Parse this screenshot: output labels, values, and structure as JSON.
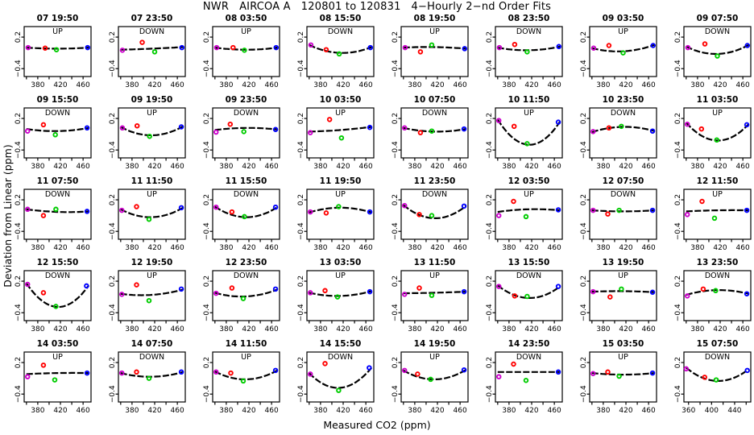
{
  "chart_data": {
    "type": "scatter",
    "title": "NWR   AIRCOA A   120801 to 120831   4−Hourly 2−nd Order Fits",
    "xlabel": "Measured CO2 (ppm)",
    "ylabel": "Deviation from Linear (ppm)",
    "layout": {
      "rows": 5,
      "cols": 8,
      "grid_lines": false,
      "legend": "none"
    },
    "ylim": [
      -0.55,
      0.4
    ],
    "yticks": [
      0.2,
      -0.4
    ],
    "ytick_labels": [
      "0.2",
      "−0.4"
    ],
    "default_xlim": [
      356,
      474
    ],
    "default_xticks": [
      360,
      380,
      400,
      420,
      440,
      460
    ],
    "default_xtick_labels": [
      380,
      420,
      460
    ],
    "series_colors": {
      "magenta": "#cc00cc",
      "red": "#ff0000",
      "green": "#00cc00",
      "blue": "#0000ff"
    },
    "point_series_order": [
      "magenta",
      "red",
      "green",
      "blue"
    ],
    "curve_note": "curve = fitted 2nd-order deviation sampled at [left, mid, right] of x-range",
    "panels": [
      {
        "title": "07 19:50",
        "dir": "UP",
        "points": [
          [
            363,
            0.0
          ],
          [
            393,
            -0.01
          ],
          [
            413,
            -0.04
          ],
          [
            468,
            0.0
          ]
        ],
        "curve": [
          0.0,
          -0.02,
          0.0
        ]
      },
      {
        "title": "07 23:50",
        "dir": "DOWN",
        "points": [
          [
            363,
            -0.05
          ],
          [
            398,
            0.1
          ],
          [
            420,
            -0.08
          ],
          [
            468,
            0.0
          ]
        ],
        "curve": [
          -0.04,
          -0.02,
          0.01
        ]
      },
      {
        "title": "08 03:50",
        "dir": "UP",
        "points": [
          [
            363,
            0.0
          ],
          [
            392,
            0.0
          ],
          [
            412,
            -0.05
          ],
          [
            468,
            0.0
          ]
        ],
        "curve": [
          0.0,
          -0.04,
          0.0
        ]
      },
      {
        "title": "08 15:50",
        "dir": "DOWN",
        "points": [
          [
            363,
            0.05
          ],
          [
            390,
            -0.04
          ],
          [
            413,
            -0.12
          ],
          [
            468,
            0.0
          ]
        ],
        "curve": [
          0.05,
          -0.1,
          0.01
        ]
      },
      {
        "title": "08 19:50",
        "dir": "UP",
        "points": [
          [
            363,
            0.0
          ],
          [
            390,
            -0.08
          ],
          [
            410,
            0.05
          ],
          [
            468,
            -0.02
          ]
        ],
        "curve": [
          0.0,
          0.01,
          -0.02
        ]
      },
      {
        "title": "08 23:50",
        "dir": "DOWN",
        "points": [
          [
            363,
            0.0
          ],
          [
            390,
            0.06
          ],
          [
            412,
            -0.08
          ],
          [
            468,
            0.02
          ]
        ],
        "curve": [
          0.0,
          -0.05,
          0.02
        ]
      },
      {
        "title": "09 03:50",
        "dir": "UP",
        "points": [
          [
            363,
            -0.01
          ],
          [
            390,
            0.04
          ],
          [
            415,
            -0.1
          ],
          [
            468,
            0.04
          ]
        ],
        "curve": [
          -0.01,
          -0.07,
          0.05
        ]
      },
      {
        "title": "09 07:50",
        "dir": "DOWN",
        "points": [
          [
            363,
            0.0
          ],
          [
            393,
            0.07
          ],
          [
            415,
            -0.16
          ],
          [
            468,
            0.04
          ]
        ],
        "curve": [
          0.02,
          -0.12,
          0.05
        ]
      },
      {
        "title": "09 15:50",
        "dir": "DOWN",
        "points": [
          [
            362,
            -0.04
          ],
          [
            390,
            0.08
          ],
          [
            411,
            -0.11
          ],
          [
            467,
            0.02
          ]
        ],
        "curve": [
          0.0,
          -0.04,
          0.02
        ]
      },
      {
        "title": "09 19:50",
        "dir": "UP",
        "points": [
          [
            363,
            0.02
          ],
          [
            389,
            0.06
          ],
          [
            411,
            -0.14
          ],
          [
            467,
            0.04
          ]
        ],
        "curve": [
          0.04,
          -0.12,
          0.05
        ]
      },
      {
        "title": "09 23:50",
        "dir": "DOWN",
        "points": [
          [
            362,
            -0.06
          ],
          [
            387,
            0.09
          ],
          [
            411,
            -0.05
          ],
          [
            467,
            -0.01
          ]
        ],
        "curve": [
          -0.02,
          0.02,
          -0.01
        ]
      },
      {
        "title": "10 03:50",
        "dir": "UP",
        "points": [
          [
            362,
            -0.07
          ],
          [
            396,
            0.18
          ],
          [
            417,
            -0.17
          ],
          [
            467,
            0.03
          ]
        ],
        "curve": [
          -0.05,
          -0.02,
          0.04
        ]
      },
      {
        "title": "10 07:50",
        "dir": "DOWN",
        "points": [
          [
            362,
            0.02
          ],
          [
            390,
            -0.07
          ],
          [
            410,
            -0.04
          ],
          [
            467,
            0.0
          ]
        ],
        "curve": [
          0.02,
          -0.05,
          0.0
        ]
      },
      {
        "title": "10 11:50",
        "dir": "UP",
        "points": [
          [
            362,
            0.16
          ],
          [
            389,
            0.05
          ],
          [
            412,
            -0.28
          ],
          [
            467,
            0.13
          ]
        ],
        "curve": [
          0.18,
          -0.3,
          0.14
        ]
      },
      {
        "title": "10 23:50",
        "dir": "DOWN",
        "points": [
          [
            362,
            -0.05
          ],
          [
            390,
            0.02
          ],
          [
            412,
            0.05
          ],
          [
            467,
            -0.04
          ]
        ],
        "curve": [
          -0.06,
          0.04,
          -0.04
        ]
      },
      {
        "title": "11 03:50",
        "dir": "UP",
        "points": [
          [
            362,
            0.09
          ],
          [
            387,
            0.0
          ],
          [
            414,
            -0.21
          ],
          [
            467,
            0.08
          ]
        ],
        "curve": [
          0.12,
          -0.22,
          0.09
        ]
      },
      {
        "title": "11 07:50",
        "dir": "DOWN",
        "points": [
          [
            362,
            0.02
          ],
          [
            390,
            -0.1
          ],
          [
            412,
            0.02
          ],
          [
            467,
            -0.02
          ]
        ],
        "curve": [
          0.02,
          -0.03,
          -0.02
        ]
      },
      {
        "title": "11 11:50",
        "dir": "UP",
        "points": [
          [
            362,
            0.0
          ],
          [
            388,
            0.07
          ],
          [
            410,
            -0.17
          ],
          [
            467,
            0.05
          ]
        ],
        "curve": [
          0.02,
          -0.13,
          0.05
        ]
      },
      {
        "title": "11 15:50",
        "dir": "DOWN",
        "points": [
          [
            362,
            0.06
          ],
          [
            390,
            -0.03
          ],
          [
            412,
            -0.12
          ],
          [
            467,
            0.06
          ]
        ],
        "curve": [
          0.07,
          -0.13,
          0.06
        ]
      },
      {
        "title": "11 19:50",
        "dir": "UP",
        "points": [
          [
            362,
            -0.03
          ],
          [
            390,
            -0.05
          ],
          [
            412,
            0.07
          ],
          [
            467,
            -0.03
          ]
        ],
        "curve": [
          -0.04,
          0.05,
          -0.04
        ]
      },
      {
        "title": "11 23:50",
        "dir": "DOWN",
        "points": [
          [
            362,
            0.09
          ],
          [
            388,
            -0.08
          ],
          [
            410,
            -0.1
          ],
          [
            467,
            0.08
          ]
        ],
        "curve": [
          0.1,
          -0.15,
          0.08
        ]
      },
      {
        "title": "12 03:50",
        "dir": "UP",
        "points": [
          [
            362,
            -0.1
          ],
          [
            388,
            0.17
          ],
          [
            410,
            -0.12
          ],
          [
            467,
            0.01
          ]
        ],
        "curve": [
          -0.03,
          0.02,
          0.0
        ]
      },
      {
        "title": "12 07:50",
        "dir": "DOWN",
        "points": [
          [
            362,
            0.0
          ],
          [
            388,
            -0.07
          ],
          [
            408,
            0.0
          ],
          [
            467,
            0.0
          ]
        ],
        "curve": [
          0.0,
          -0.02,
          0.0
        ]
      },
      {
        "title": "12 11:50",
        "dir": "UP",
        "points": [
          [
            362,
            -0.08
          ],
          [
            388,
            0.17
          ],
          [
            410,
            -0.15
          ],
          [
            467,
            0.0
          ]
        ],
        "curve": [
          -0.02,
          0.0,
          0.0
        ]
      },
      {
        "title": "12 15:50",
        "dir": "DOWN",
        "points": [
          [
            362,
            0.14
          ],
          [
            390,
            -0.02
          ],
          [
            412,
            -0.28
          ],
          [
            466,
            0.11
          ]
        ],
        "curve": [
          0.16,
          -0.29,
          0.12
        ]
      },
      {
        "title": "12 19:50",
        "dir": "UP",
        "points": [
          [
            362,
            -0.05
          ],
          [
            388,
            0.13
          ],
          [
            410,
            -0.17
          ],
          [
            467,
            0.05
          ]
        ],
        "curve": [
          -0.04,
          -0.06,
          0.04
        ]
      },
      {
        "title": "12 23:50",
        "dir": "DOWN",
        "points": [
          [
            362,
            -0.03
          ],
          [
            390,
            0.07
          ],
          [
            410,
            -0.13
          ],
          [
            467,
            0.05
          ]
        ],
        "curve": [
          -0.02,
          -0.09,
          0.04
        ]
      },
      {
        "title": "13 03:50",
        "dir": "UP",
        "points": [
          [
            362,
            -0.02
          ],
          [
            388,
            0.02
          ],
          [
            410,
            -0.1
          ],
          [
            467,
            0.0
          ]
        ],
        "curve": [
          -0.02,
          -0.08,
          0.01
        ]
      },
      {
        "title": "13 11:50",
        "dir": "UP",
        "points": [
          [
            362,
            -0.05
          ],
          [
            388,
            0.07
          ],
          [
            410,
            -0.07
          ],
          [
            467,
            0.0
          ]
        ],
        "curve": [
          -0.03,
          -0.02,
          0.0
        ]
      },
      {
        "title": "13 15:50",
        "dir": "DOWN",
        "points": [
          [
            362,
            0.1
          ],
          [
            390,
            -0.08
          ],
          [
            412,
            -0.09
          ],
          [
            467,
            0.1
          ]
        ],
        "curve": [
          0.12,
          -0.12,
          0.1
        ]
      },
      {
        "title": "13 19:50",
        "dir": "UP",
        "points": [
          [
            362,
            0.0
          ],
          [
            392,
            -0.1
          ],
          [
            412,
            0.05
          ],
          [
            467,
            -0.01
          ]
        ],
        "curve": [
          0.0,
          0.01,
          -0.01
        ]
      },
      {
        "title": "13 23:50",
        "dir": "DOWN",
        "points": [
          [
            362,
            -0.08
          ],
          [
            390,
            0.05
          ],
          [
            412,
            0.02
          ],
          [
            467,
            -0.04
          ]
        ],
        "curve": [
          -0.06,
          0.03,
          -0.04
        ]
      },
      {
        "title": "14 03:50",
        "dir": "UP",
        "points": [
          [
            362,
            -0.07
          ],
          [
            390,
            0.15
          ],
          [
            410,
            -0.13
          ],
          [
            467,
            0.0
          ]
        ],
        "curve": [
          -0.02,
          0.0,
          0.0
        ]
      },
      {
        "title": "14 07:50",
        "dir": "DOWN",
        "points": [
          [
            362,
            0.0
          ],
          [
            388,
            0.02
          ],
          [
            410,
            -0.1
          ],
          [
            467,
            0.02
          ]
        ],
        "curve": [
          0.0,
          -0.07,
          0.02
        ]
      },
      {
        "title": "14 11:50",
        "dir": "UP",
        "points": [
          [
            362,
            0.02
          ],
          [
            388,
            0.0
          ],
          [
            410,
            -0.15
          ],
          [
            467,
            0.05
          ]
        ],
        "curve": [
          0.03,
          -0.12,
          0.05
        ]
      },
      {
        "title": "14 15:50",
        "dir": "DOWN",
        "points": [
          [
            362,
            -0.02
          ],
          [
            388,
            0.18
          ],
          [
            412,
            -0.33
          ],
          [
            466,
            0.1
          ]
        ],
        "curve": [
          0.0,
          -0.28,
          0.1
        ]
      },
      {
        "title": "14 19:50",
        "dir": "UP",
        "points": [
          [
            362,
            0.05
          ],
          [
            385,
            -0.02
          ],
          [
            408,
            -0.12
          ],
          [
            467,
            0.06
          ]
        ],
        "curve": [
          0.05,
          -0.12,
          0.06
        ]
      },
      {
        "title": "14 23:50",
        "dir": "DOWN",
        "points": [
          [
            362,
            -0.07
          ],
          [
            388,
            0.17
          ],
          [
            410,
            -0.14
          ],
          [
            467,
            0.02
          ]
        ],
        "curve": [
          0.02,
          0.02,
          0.02
        ]
      },
      {
        "title": "15 03:50",
        "dir": "UP",
        "points": [
          [
            362,
            -0.01
          ],
          [
            388,
            0.02
          ],
          [
            408,
            -0.06
          ],
          [
            467,
            0.0
          ]
        ],
        "curve": [
          0.0,
          -0.03,
          0.0
        ]
      },
      {
        "title": "15 07:50",
        "dir": "DOWN",
        "points": [
          [
            356,
            0.08
          ],
          [
            388,
            -0.08
          ],
          [
            408,
            -0.13
          ],
          [
            462,
            0.05
          ]
        ],
        "curve": [
          0.1,
          -0.15,
          0.07
        ],
        "xlim": [
          352,
          468
        ],
        "xticks": [
          360,
          380,
          400,
          420,
          440,
          460
        ],
        "xtick_labels": [
          360,
          400,
          440
        ]
      }
    ]
  }
}
